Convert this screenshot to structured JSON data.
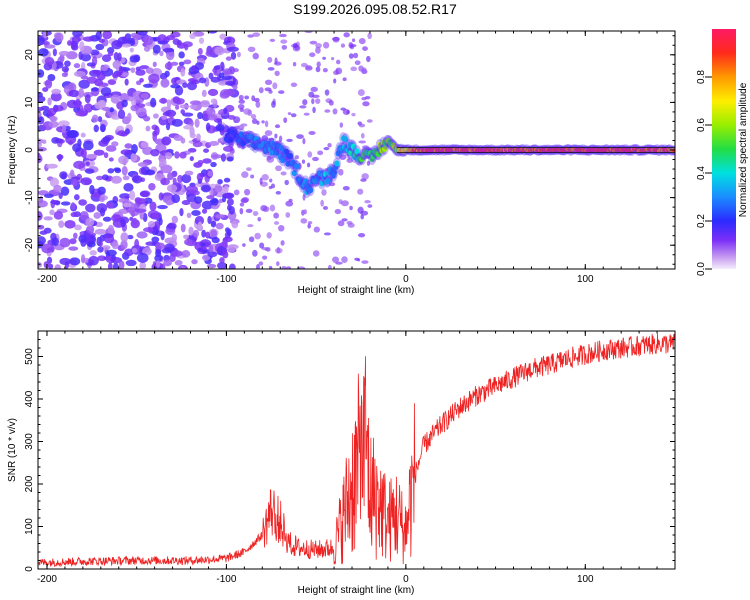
{
  "figure_title": "S199.2026.095.08.52.R17",
  "colors": {
    "snr_line": "#ee2222",
    "axis": "#000000",
    "spectrogram_points": "#6a1fd6",
    "ridge": "#111111"
  },
  "chart_data": [
    {
      "type": "heatmap",
      "title": "",
      "xlabel": "Height of straight line (km)",
      "ylabel": "Frequency (Hz)",
      "xlim": [
        -205,
        150
      ],
      "ylim": [
        -25,
        25
      ],
      "x_ticks": [
        -200,
        -100,
        0,
        100
      ],
      "x_tick_labels": [
        "-200",
        "-100",
        "0",
        "100"
      ],
      "y_ticks": [
        -20,
        -10,
        0,
        10,
        20
      ],
      "y_tick_labels": [
        "-20",
        "-10",
        "0",
        "10",
        "20"
      ],
      "colorbar": {
        "label": "Normalized spectral amplitude",
        "range": [
          0,
          1
        ],
        "ticks": [
          0.0,
          0.2,
          0.4,
          0.6,
          0.8
        ],
        "tick_labels": [
          "0.0",
          "0.2",
          "0.4",
          "0.6",
          "0.8"
        ]
      },
      "ridge": {
        "description": "main carrier track (frequency vs height)",
        "x": [
          -100,
          -90,
          -80,
          -72,
          -65,
          -60,
          -55,
          -50,
          -45,
          -40,
          -35,
          -30,
          -25,
          -20,
          -15,
          -10,
          -5,
          0,
          10,
          25,
          50,
          75,
          100,
          125,
          150
        ],
        "y": [
          3,
          2,
          1,
          0,
          -2,
          -5,
          -8,
          -6,
          -6,
          -4,
          2,
          0,
          -1,
          -2,
          0,
          2,
          0,
          0,
          0,
          0,
          0,
          0,
          0,
          0,
          0
        ],
        "amplitude": [
          0.2,
          0.25,
          0.3,
          0.3,
          0.25,
          0.3,
          0.3,
          0.3,
          0.35,
          0.3,
          0.35,
          0.4,
          0.45,
          0.5,
          0.55,
          0.55,
          0.6,
          0.75,
          0.9,
          0.95,
          0.9,
          0.95,
          0.95,
          0.9,
          0.9
        ]
      },
      "noise_region": {
        "description": "scattered low-amplitude noise",
        "x_range": [
          -205,
          -95
        ],
        "y_range": [
          -25,
          25
        ],
        "amplitude": 0.15
      }
    },
    {
      "type": "line",
      "title": "",
      "xlabel": "Height of straight line (km)",
      "ylabel": "SNR (10 * v/v)",
      "xlim": [
        -205,
        150
      ],
      "ylim": [
        0,
        560
      ],
      "x_ticks": [
        -200,
        -100,
        0,
        100
      ],
      "x_tick_labels": [
        "-200",
        "-100",
        "0",
        "100"
      ],
      "y_ticks": [
        0,
        100,
        200,
        300,
        400,
        500
      ],
      "y_tick_labels": [
        "0",
        "100",
        "200",
        "300",
        "400",
        "500"
      ],
      "series": [
        {
          "name": "SNR",
          "x": [
            -205,
            -180,
            -150,
            -120,
            -100,
            -90,
            -80,
            -75,
            -70,
            -65,
            -60,
            -50,
            -40,
            -35,
            -30,
            -25,
            -22,
            -20,
            -15,
            -10,
            -5,
            -2,
            0,
            5,
            10,
            20,
            30,
            40,
            50,
            60,
            70,
            80,
            90,
            100,
            110,
            120,
            130,
            140,
            150
          ],
          "y": [
            15,
            18,
            20,
            20,
            25,
            40,
            80,
            140,
            110,
            60,
            50,
            45,
            50,
            120,
            200,
            260,
            300,
            180,
            160,
            110,
            130,
            100,
            100,
            220,
            290,
            340,
            380,
            410,
            430,
            450,
            470,
            480,
            495,
            505,
            515,
            520,
            525,
            530,
            530
          ]
        }
      ],
      "annotations": [
        "noisy spikes near -20 km and 0 km reaching about 450"
      ]
    }
  ]
}
